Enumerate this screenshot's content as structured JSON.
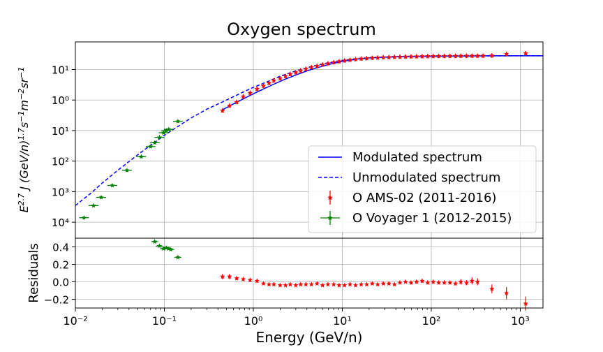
{
  "chart_data": {
    "type": "scatter",
    "title": "Oxygen spectrum",
    "xlabel": "Energy (GeV/n)",
    "xscale": "log",
    "xlim": [
      0.01,
      1800
    ],
    "grid": true,
    "x_tick_labels": [
      "10⁻²",
      "10⁻¹",
      "10⁰",
      "10¹",
      "10²",
      "10³"
    ],
    "top_panel": {
      "ylabel": "E^{2.7} J (GeV/n)^{1.7} s^{-1} m^{-2} sr^{-1}",
      "yscale": "log",
      "ylim": [
        3e-05,
        80
      ],
      "y_tick_labels": [
        "10⁴",
        "10³",
        "10²",
        "10¹",
        "10⁰",
        "10¹"
      ],
      "legend_position": "lower-right",
      "series": [
        {
          "name": "Modulated spectrum",
          "kind": "line",
          "style": "solid",
          "color": "#0000ff",
          "points": [
            [
              0.45,
              0.48
            ],
            [
              0.6,
              0.75
            ],
            [
              0.8,
              1.15
            ],
            [
              1.0,
              1.6
            ],
            [
              1.3,
              2.3
            ],
            [
              1.7,
              3.3
            ],
            [
              2.2,
              4.6
            ],
            [
              3.0,
              6.6
            ],
            [
              4.0,
              9.0
            ],
            [
              5.0,
              11.0
            ],
            [
              7.0,
              14.5
            ],
            [
              10,
              18.5
            ],
            [
              15,
              22
            ],
            [
              20,
              24
            ],
            [
              30,
              25.5
            ],
            [
              50,
              26.5
            ],
            [
              100,
              27.2
            ],
            [
              200,
              27.6
            ],
            [
              500,
              28
            ],
            [
              1000,
              28
            ],
            [
              1800,
              28
            ]
          ]
        },
        {
          "name": "Unmodulated spectrum",
          "kind": "line",
          "style": "dashed",
          "color": "#0000ff",
          "points": [
            [
              0.01,
              0.00035
            ],
            [
              0.015,
              0.0009
            ],
            [
              0.02,
              0.0019
            ],
            [
              0.03,
              0.005
            ],
            [
              0.05,
              0.016
            ],
            [
              0.07,
              0.033
            ],
            [
              0.1,
              0.07
            ],
            [
              0.15,
              0.15
            ],
            [
              0.2,
              0.26
            ],
            [
              0.3,
              0.5
            ],
            [
              0.5,
              1.0
            ],
            [
              0.7,
              1.6
            ],
            [
              1.0,
              2.6
            ],
            [
              1.5,
              4.2
            ],
            [
              2.0,
              6.0
            ],
            [
              3.0,
              9.0
            ],
            [
              5.0,
              13.5
            ],
            [
              10,
              20
            ],
            [
              20,
              24
            ],
            [
              50,
              26.5
            ],
            [
              100,
              27.3
            ],
            [
              300,
              27.8
            ],
            [
              1000,
              28
            ],
            [
              1800,
              28
            ]
          ]
        },
        {
          "name": "O AMS-02 (2011-2016)",
          "kind": "errorbar",
          "color": "#ff0000",
          "marker": "star",
          "points": [
            [
              0.45,
              0.45
            ],
            [
              0.54,
              0.65
            ],
            [
              0.65,
              0.85
            ],
            [
              0.77,
              1.3
            ],
            [
              0.92,
              1.7
            ],
            [
              1.1,
              2.3
            ],
            [
              1.3,
              2.9
            ],
            [
              1.5,
              3.6
            ],
            [
              1.7,
              4.3
            ],
            [
              2.0,
              5.1
            ],
            [
              2.3,
              6.0
            ],
            [
              2.6,
              7.0
            ],
            [
              3.0,
              8.0
            ],
            [
              3.4,
              9.2
            ],
            [
              3.9,
              10.4
            ],
            [
              4.5,
              11.8
            ],
            [
              5.2,
              13.0
            ],
            [
              6.0,
              14.4
            ],
            [
              6.9,
              15.7
            ],
            [
              8.0,
              17.0
            ],
            [
              9.2,
              18.3
            ],
            [
              10.6,
              19.5
            ],
            [
              12.2,
              20.6
            ],
            [
              14.1,
              21.6
            ],
            [
              16.3,
              22.5
            ],
            [
              18.8,
              23.2
            ],
            [
              21.7,
              23.9
            ],
            [
              25.0,
              24.4
            ],
            [
              28.9,
              24.9
            ],
            [
              33.4,
              25.3
            ],
            [
              38.5,
              25.7
            ],
            [
              44.4,
              26.0
            ],
            [
              51.3,
              26.3
            ],
            [
              59.2,
              26.5
            ],
            [
              68.3,
              26.8
            ],
            [
              78.9,
              27.0
            ],
            [
              91.1,
              27.2
            ],
            [
              105,
              27.3
            ],
            [
              121,
              27.4
            ],
            [
              140,
              27.5
            ],
            [
              162,
              27.6
            ],
            [
              187,
              27.7
            ],
            [
              215,
              27.8
            ],
            [
              249,
              27.9
            ],
            [
              287,
              28.0
            ],
            [
              331,
              28.0
            ],
            [
              382,
              28.1
            ],
            [
              480,
              28.5
            ],
            [
              700,
              32
            ],
            [
              1150,
              34
            ]
          ]
        },
        {
          "name": "O Voyager 1 (2012-2015)",
          "kind": "errorbar",
          "color": "#008000",
          "marker": "star",
          "points": [
            [
              0.0125,
              0.00014
            ],
            [
              0.016,
              0.00035
            ],
            [
              0.0195,
              0.00065
            ],
            [
              0.026,
              0.0016
            ],
            [
              0.038,
              0.005
            ],
            [
              0.055,
              0.014
            ],
            [
              0.07,
              0.03
            ],
            [
              0.078,
              0.04
            ],
            [
              0.088,
              0.06
            ],
            [
              0.098,
              0.085
            ],
            [
              0.105,
              0.1
            ],
            [
              0.112,
              0.11
            ],
            [
              0.142,
              0.2
            ]
          ]
        }
      ]
    },
    "bottom_panel": {
      "ylabel": "Residuals",
      "ylim": [
        -0.3,
        0.5
      ],
      "y_tick_labels": [
        "0.4",
        "0.2",
        "0.0",
        "−0.2"
      ],
      "series": [
        {
          "name": "O AMS-02 (2011-2016)",
          "color": "#ff0000",
          "marker": "star",
          "points": [
            [
              0.45,
              0.06,
              0.03
            ],
            [
              0.54,
              0.06,
              0.03
            ],
            [
              0.65,
              0.04,
              0.02
            ],
            [
              0.77,
              0.03,
              0.02
            ],
            [
              0.92,
              0.02,
              0.02
            ],
            [
              1.1,
              0.01,
              0.02
            ],
            [
              1.3,
              -0.02,
              0.015
            ],
            [
              1.5,
              -0.03,
              0.015
            ],
            [
              1.7,
              -0.03,
              0.015
            ],
            [
              2.0,
              -0.04,
              0.015
            ],
            [
              2.3,
              -0.04,
              0.015
            ],
            [
              2.6,
              -0.03,
              0.015
            ],
            [
              3.0,
              -0.04,
              0.015
            ],
            [
              3.4,
              -0.03,
              0.015
            ],
            [
              3.9,
              -0.03,
              0.015
            ],
            [
              4.5,
              -0.03,
              0.015
            ],
            [
              5.2,
              -0.02,
              0.015
            ],
            [
              6.0,
              -0.04,
              0.015
            ],
            [
              6.9,
              -0.03,
              0.015
            ],
            [
              8.0,
              -0.03,
              0.015
            ],
            [
              9.2,
              -0.04,
              0.015
            ],
            [
              10.6,
              -0.04,
              0.015
            ],
            [
              12.2,
              -0.03,
              0.015
            ],
            [
              14.1,
              -0.04,
              0.015
            ],
            [
              16.3,
              -0.03,
              0.015
            ],
            [
              18.8,
              -0.03,
              0.015
            ],
            [
              21.7,
              -0.02,
              0.015
            ],
            [
              25.0,
              -0.03,
              0.015
            ],
            [
              28.9,
              -0.02,
              0.015
            ],
            [
              33.4,
              -0.02,
              0.015
            ],
            [
              38.5,
              -0.03,
              0.015
            ],
            [
              44.4,
              -0.01,
              0.015
            ],
            [
              51.3,
              0.0,
              0.015
            ],
            [
              59.2,
              -0.01,
              0.02
            ],
            [
              68.3,
              0.0,
              0.02
            ],
            [
              78.9,
              0.01,
              0.02
            ],
            [
              91.1,
              -0.01,
              0.02
            ],
            [
              105,
              0.0,
              0.02
            ],
            [
              121,
              -0.01,
              0.02
            ],
            [
              140,
              -0.01,
              0.02
            ],
            [
              162,
              -0.01,
              0.02
            ],
            [
              187,
              -0.02,
              0.02
            ],
            [
              215,
              0.0,
              0.03
            ],
            [
              249,
              -0.01,
              0.03
            ],
            [
              287,
              0.01,
              0.04
            ],
            [
              331,
              0.0,
              0.04
            ],
            [
              480,
              -0.08,
              0.05
            ],
            [
              700,
              -0.13,
              0.07
            ],
            [
              1150,
              -0.25,
              0.08
            ]
          ]
        },
        {
          "name": "O Voyager 1 (2012-2015)",
          "color": "#008000",
          "marker": "star",
          "points": [
            [
              0.078,
              0.46,
              0.01
            ],
            [
              0.088,
              0.41,
              0.01
            ],
            [
              0.098,
              0.38,
              0.01
            ],
            [
              0.105,
              0.39,
              0.01
            ],
            [
              0.112,
              0.38,
              0.01
            ],
            [
              0.118,
              0.37,
              0.01
            ],
            [
              0.142,
              0.28,
              0.01
            ]
          ]
        }
      ]
    }
  }
}
